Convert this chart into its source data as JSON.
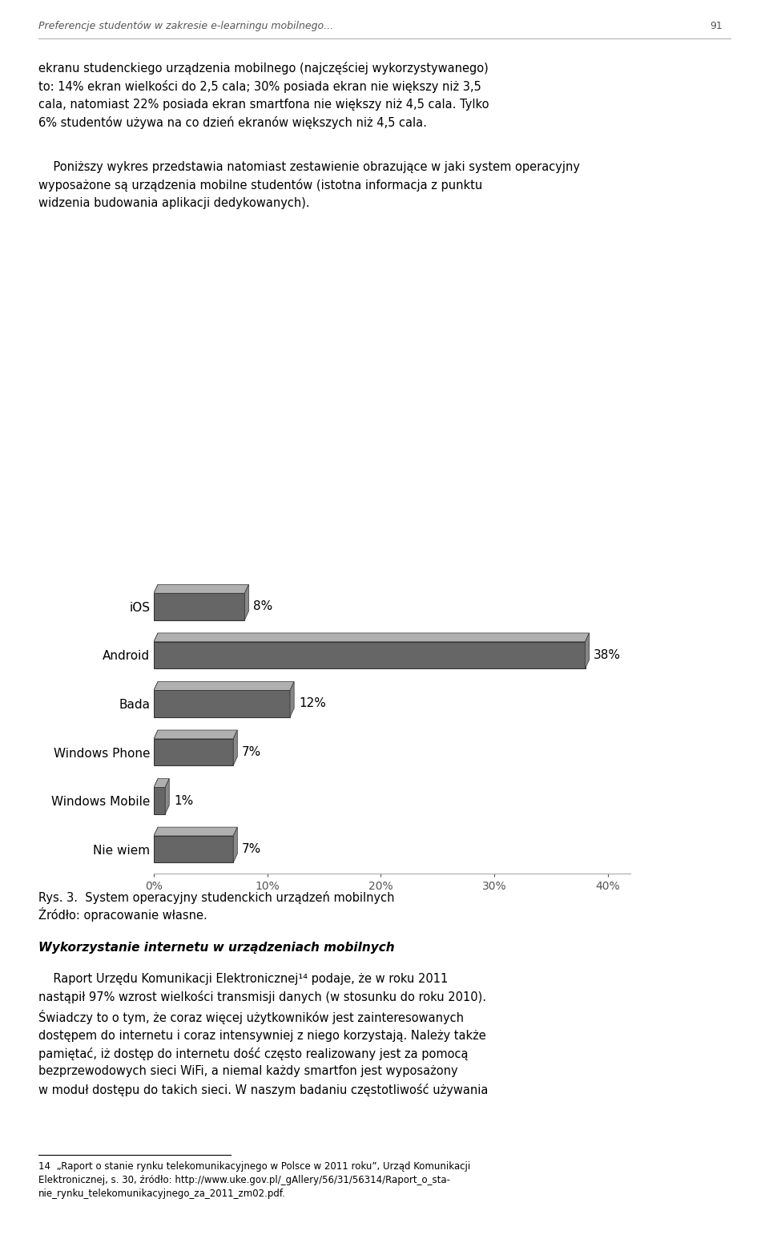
{
  "categories": [
    "Nie wiem",
    "Windows Mobile",
    "Windows Phone",
    "Bada",
    "Android",
    "iOS"
  ],
  "values": [
    7,
    1,
    7,
    12,
    38,
    8
  ],
  "bar_color": "#666666",
  "bar_edge_color": "#333333",
  "background_color": "#ffffff",
  "xlim": [
    0,
    42
  ],
  "xticks": [
    0,
    10,
    20,
    30,
    40
  ],
  "xticklabels": [
    "0%",
    "10%",
    "20%",
    "30%",
    "40%"
  ],
  "label_fontsize": 11,
  "tick_fontsize": 10,
  "fig_width": 9.6,
  "fig_height": 15.46,
  "header_text": "Preferencje studentów w zakresie e-learningu mobilnego...",
  "header_page": "91",
  "body_text1": "ekranu studenckiego urządzenia mobilnego (najczęściej wykorzystywanego)\nto: 14% ekran wielkości do 2,5 cala; 30% posiada ekran nie większy niż 3,5\ncala, natomiast 22% posiada ekran smartfona nie większy niż 4,5 cala. Tylko\n6% studentów używa na co dzień ekranów większych niż 4,5 cala.",
  "body_text2": "    Poniższy wykres przedstawia natomiast zestawienie obrazujące w jaki system operacyjny\nwyposażone są urządzenia mobilne studentów (istotna informacja z punktu\nwidzenia budowania aplikacji dedykowanych).",
  "caption1": "Rys. 3.  System operacyjny studenckich urządzeń mobilnych",
  "caption2": "Źródło: opracowanie własne.",
  "section_title": "Wykorzystanie internetu w urządzeniach mobilnych",
  "lower_text": "    Raport Urzędu Komunikacji Elektronicznej¹⁴ podaje, że w roku 2011\nnastąpił 97% wzrost wielkości transmisji danych (w stosunku do roku 2010).\nŚwiadczy to o tym, że coraz więcej użytkowników jest zainteresowanych\ndostępem do internetu i coraz intensywniej z niego korzystają. Należy także\npamiętać, iż dostęp do internetu dość często realizowany jest za pomocą\nbezprzewodowych sieci WiFi, a niemal każdy smartfon jest wyposażony\nw moduł dostępu do takich sieci. W naszym badaniu częstotliwość używania",
  "footnote": "14  „Raport o stanie rynku telekomunikacyjnego w Polsce w 2011 roku”, Urząd Komunikacji\nElektronicznej, s. 30, źródło: http://www.uke.gov.pl/_gAllery/56/31/56314/Raport_o_sta-\nnie_rynku_telekomunikacyjnego_za_2011_zm02.pdf."
}
